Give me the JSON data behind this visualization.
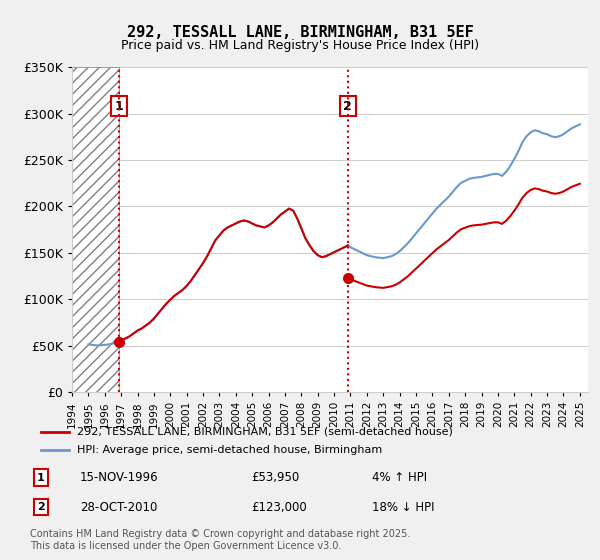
{
  "title": "292, TESSALL LANE, BIRMINGHAM, B31 5EF",
  "subtitle": "Price paid vs. HM Land Registry's House Price Index (HPI)",
  "xlabel": "",
  "ylabel": "",
  "ylim": [
    0,
    350000
  ],
  "yticks": [
    0,
    50000,
    100000,
    150000,
    200000,
    250000,
    300000,
    350000
  ],
  "ytick_labels": [
    "£0",
    "£50K",
    "£100K",
    "£150K",
    "£200K",
    "£250K",
    "£300K",
    "£350K"
  ],
  "xlim_start": 1994.0,
  "xlim_end": 2025.5,
  "background_color": "#f0f0f0",
  "plot_bg_color": "#ffffff",
  "hatch_end": 1996.88,
  "sale1_x": 1996.88,
  "sale1_y": 53950,
  "sale1_label": "1",
  "sale1_date": "15-NOV-1996",
  "sale1_price": "£53,950",
  "sale1_hpi": "4% ↑ HPI",
  "sale2_x": 2010.83,
  "sale2_y": 123000,
  "sale2_label": "2",
  "sale2_date": "28-OCT-2010",
  "sale2_price": "£123,000",
  "sale2_hpi": "18% ↓ HPI",
  "legend_entry1": "292, TESSALL LANE, BIRMINGHAM, B31 5EF (semi-detached house)",
  "legend_entry2": "HPI: Average price, semi-detached house, Birmingham",
  "footer": "Contains HM Land Registry data © Crown copyright and database right 2025.\nThis data is licensed under the Open Government Licence v3.0.",
  "line_color_red": "#cc0000",
  "line_color_blue": "#6699cc",
  "marker_color": "#cc0000",
  "hpi_data_x": [
    1995.0,
    1995.25,
    1995.5,
    1995.75,
    1996.0,
    1996.25,
    1996.5,
    1996.75,
    1996.88,
    1997.0,
    1997.25,
    1997.5,
    1997.75,
    1998.0,
    1998.25,
    1998.5,
    1998.75,
    1999.0,
    1999.25,
    1999.5,
    1999.75,
    2000.0,
    2000.25,
    2000.5,
    2000.75,
    2001.0,
    2001.25,
    2001.5,
    2001.75,
    2002.0,
    2002.25,
    2002.5,
    2002.75,
    2003.0,
    2003.25,
    2003.5,
    2003.75,
    2004.0,
    2004.25,
    2004.5,
    2004.75,
    2005.0,
    2005.25,
    2005.5,
    2005.75,
    2006.0,
    2006.25,
    2006.5,
    2006.75,
    2007.0,
    2007.25,
    2007.5,
    2007.75,
    2008.0,
    2008.25,
    2008.5,
    2008.75,
    2009.0,
    2009.25,
    2009.5,
    2009.75,
    2010.0,
    2010.25,
    2010.5,
    2010.75,
    2010.83,
    2011.0,
    2011.25,
    2011.5,
    2011.75,
    2012.0,
    2012.25,
    2012.5,
    2012.75,
    2013.0,
    2013.25,
    2013.5,
    2013.75,
    2014.0,
    2014.25,
    2014.5,
    2014.75,
    2015.0,
    2015.25,
    2015.5,
    2015.75,
    2016.0,
    2016.25,
    2016.5,
    2016.75,
    2017.0,
    2017.25,
    2017.5,
    2017.75,
    2018.0,
    2018.25,
    2018.5,
    2018.75,
    2019.0,
    2019.25,
    2019.5,
    2019.75,
    2020.0,
    2020.25,
    2020.5,
    2020.75,
    2021.0,
    2021.25,
    2021.5,
    2021.75,
    2022.0,
    2022.25,
    2022.5,
    2022.75,
    2023.0,
    2023.25,
    2023.5,
    2023.75,
    2024.0,
    2024.25,
    2024.5,
    2024.75,
    2025.0
  ],
  "hpi_data_y": [
    48000,
    47500,
    47000,
    47200,
    47500,
    48000,
    49000,
    50000,
    50500,
    52000,
    54000,
    56000,
    59000,
    62000,
    64000,
    67000,
    70000,
    74000,
    79000,
    84000,
    89000,
    93000,
    97000,
    100000,
    103000,
    107000,
    112000,
    118000,
    124000,
    130000,
    137000,
    145000,
    153000,
    158000,
    163000,
    166000,
    168000,
    170000,
    172000,
    173000,
    172000,
    170000,
    168000,
    167000,
    166000,
    168000,
    171000,
    175000,
    179000,
    182000,
    185000,
    183000,
    175000,
    165000,
    155000,
    148000,
    142000,
    138000,
    136000,
    137000,
    139000,
    141000,
    143000,
    145000,
    147000,
    148000,
    146000,
    144000,
    142000,
    140000,
    138000,
    137000,
    136000,
    135500,
    135000,
    136000,
    137000,
    139000,
    142000,
    146000,
    150000,
    155000,
    160000,
    165000,
    170000,
    175000,
    180000,
    185000,
    189000,
    193000,
    197000,
    202000,
    207000,
    211000,
    213000,
    215000,
    216000,
    216500,
    217000,
    218000,
    219000,
    220000,
    220000,
    218000,
    222000,
    228000,
    235000,
    243000,
    252000,
    258000,
    262000,
    264000,
    263000,
    261000,
    260000,
    258000,
    257000,
    258000,
    260000,
    263000,
    266000,
    268000,
    270000
  ],
  "price_data_x": [
    1996.88,
    2010.83
  ],
  "price_data_y": [
    53950,
    123000
  ],
  "indexed_hpi_x": [
    1996.88,
    1997.0,
    1997.25,
    1997.5,
    1997.75,
    1998.0,
    1998.25,
    1998.5,
    1998.75,
    1999.0,
    1999.25,
    1999.5,
    1999.75,
    2000.0,
    2000.25,
    2000.5,
    2000.75,
    2001.0,
    2001.25,
    2001.5,
    2001.75,
    2002.0,
    2002.25,
    2002.5,
    2002.75,
    2003.0,
    2003.25,
    2003.5,
    2003.75,
    2004.0,
    2004.25,
    2004.5,
    2004.75,
    2005.0,
    2005.25,
    2005.5,
    2005.75,
    2006.0,
    2006.25,
    2006.5,
    2006.75,
    2007.0,
    2007.25,
    2007.5,
    2007.75,
    2008.0,
    2008.25,
    2008.5,
    2008.75,
    2009.0,
    2009.25,
    2009.5,
    2009.75,
    2010.0,
    2010.25,
    2010.5,
    2010.75,
    2010.83,
    2011.0,
    2011.25,
    2011.5,
    2011.75,
    2012.0,
    2012.25,
    2012.5,
    2012.75,
    2013.0,
    2013.25,
    2013.5,
    2013.75,
    2014.0,
    2014.25,
    2014.5,
    2014.75,
    2015.0,
    2015.25,
    2015.5,
    2015.75,
    2016.0,
    2016.25,
    2016.5,
    2016.75,
    2017.0,
    2017.25,
    2017.5,
    2017.75,
    2018.0,
    2018.25,
    2018.5,
    2018.75,
    2019.0,
    2019.25,
    2019.5,
    2019.75,
    2020.0,
    2020.25,
    2020.5,
    2020.75,
    2021.0,
    2021.25,
    2021.5,
    2021.75,
    2022.0,
    2022.25,
    2022.5,
    2022.75,
    2023.0,
    2023.25,
    2023.5,
    2023.75,
    2024.0,
    2024.25,
    2024.5,
    2024.75,
    2025.0
  ]
}
